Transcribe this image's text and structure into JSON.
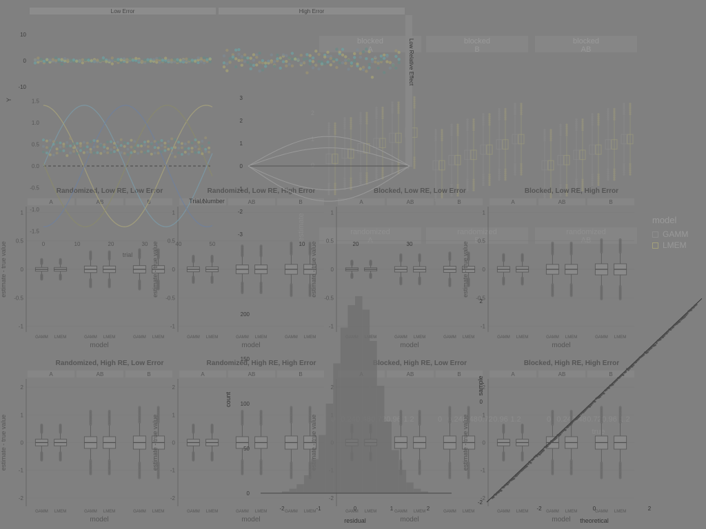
{
  "legend": {
    "title": "model",
    "items": [
      "GAMM",
      "LMEM"
    ]
  },
  "chart_data": [
    {
      "type": "scatter",
      "strips": [
        "Low Error",
        "High Error"
      ],
      "ylabel": "Y",
      "yticks": [
        10,
        0,
        -10
      ],
      "ylim": [
        -13,
        15
      ],
      "panels": [
        {
          "strip": "Low Error",
          "spread": 1.4
        },
        {
          "strip": "High Error",
          "spread": 8
        }
      ]
    },
    {
      "type": "line",
      "xlabel": "trial",
      "ylabel": "Y",
      "yticks": [
        1.5,
        1.0,
        0.5,
        0.0,
        -0.5,
        -1.0,
        -1.5
      ],
      "xticks": [
        0,
        10,
        20,
        30,
        40,
        50
      ],
      "ylim": [
        -1.7,
        1.7
      ]
    },
    {
      "type": "line",
      "xlabel": "Trial Number",
      "strip": "Low Relative Effect",
      "yticks": [
        3,
        2,
        1,
        0,
        -1,
        -2,
        -3
      ],
      "xticks": [
        10,
        20,
        30
      ],
      "ylim": [
        -3.2,
        3.2
      ]
    },
    {
      "type": "histogram",
      "xlabel": "residual",
      "ylabel": "count",
      "yticks": [
        0,
        50,
        100,
        150,
        200
      ],
      "xticks": [
        -2,
        -1,
        0,
        1,
        2
      ],
      "bins": [
        {
          "x0": -2.0,
          "x1": -1.8,
          "count": 2
        },
        {
          "x0": -1.8,
          "x1": -1.6,
          "count": 5
        },
        {
          "x0": -1.6,
          "x1": -1.4,
          "count": 10
        },
        {
          "x0": -1.4,
          "x1": -1.2,
          "count": 20
        },
        {
          "x0": -1.2,
          "x1": -1.0,
          "count": 38
        },
        {
          "x0": -1.0,
          "x1": -0.8,
          "count": 65
        },
        {
          "x0": -0.8,
          "x1": -0.6,
          "count": 100
        },
        {
          "x0": -0.6,
          "x1": -0.4,
          "count": 145
        },
        {
          "x0": -0.4,
          "x1": -0.2,
          "count": 185
        },
        {
          "x0": -0.2,
          "x1": 0.0,
          "count": 210
        },
        {
          "x0": 0.0,
          "x1": 0.2,
          "count": 220
        },
        {
          "x0": 0.2,
          "x1": 0.4,
          "count": 205
        },
        {
          "x0": 0.4,
          "x1": 0.6,
          "count": 170
        },
        {
          "x0": 0.6,
          "x1": 0.8,
          "count": 120
        },
        {
          "x0": 0.8,
          "x1": 1.0,
          "count": 80
        },
        {
          "x0": 1.0,
          "x1": 1.2,
          "count": 48
        },
        {
          "x0": 1.2,
          "x1": 1.4,
          "count": 26
        },
        {
          "x0": 1.4,
          "x1": 1.6,
          "count": 12
        },
        {
          "x0": 1.6,
          "x1": 1.8,
          "count": 5
        },
        {
          "x0": 1.8,
          "x1": 2.0,
          "count": 2
        }
      ]
    },
    {
      "type": "scatter",
      "xlabel": "theoretical",
      "ylabel": "sample",
      "xticks": [
        -2,
        0,
        2
      ],
      "yticks": [
        -2,
        0,
        2
      ]
    },
    {
      "type": "box",
      "strips": [
        "blocked\nA",
        "blocked\nB",
        "blocked\nAB"
      ],
      "bottom_strips": [
        "randomized\nA",
        "randomized\nB",
        "randomized\nAB"
      ],
      "ylabel": "estimate",
      "yticks": [
        2,
        1,
        0
      ],
      "xticks": [
        0,
        0.24,
        0.48,
        0.72,
        0.96,
        1.2
      ],
      "xlabel": "true"
    },
    {
      "type": "box",
      "panels": [
        {
          "title": "Randomized, Low RE, Low Error",
          "scale": 0.6
        },
        {
          "title": "Randomized, Low RE, High Error",
          "scale": 0.8
        },
        {
          "title": "Blocked, Low RE, Low Error",
          "scale": 0.5
        },
        {
          "title": "Blocked, Low RE, High Error",
          "scale": 0.9
        },
        {
          "title": "Randomized, High RE, Low Error",
          "scale": 1.0
        },
        {
          "title": "Randomized, High RE, High Error",
          "scale": 1.0
        },
        {
          "title": "Blocked, High RE, Low Error",
          "scale": 1.0
        },
        {
          "title": "Blocked, High RE, High Error",
          "scale": 1.0
        }
      ],
      "facets": [
        "A",
        "AB",
        "B"
      ],
      "models": [
        "GAMM",
        "LMEM"
      ],
      "xlabel": "model",
      "ylabel": "estimate - true value",
      "yticks_top": [
        1.0,
        0.5,
        0.0,
        -0.5,
        -1.0
      ],
      "yticks_bottom": [
        2,
        1,
        0,
        -1,
        -2
      ]
    }
  ]
}
